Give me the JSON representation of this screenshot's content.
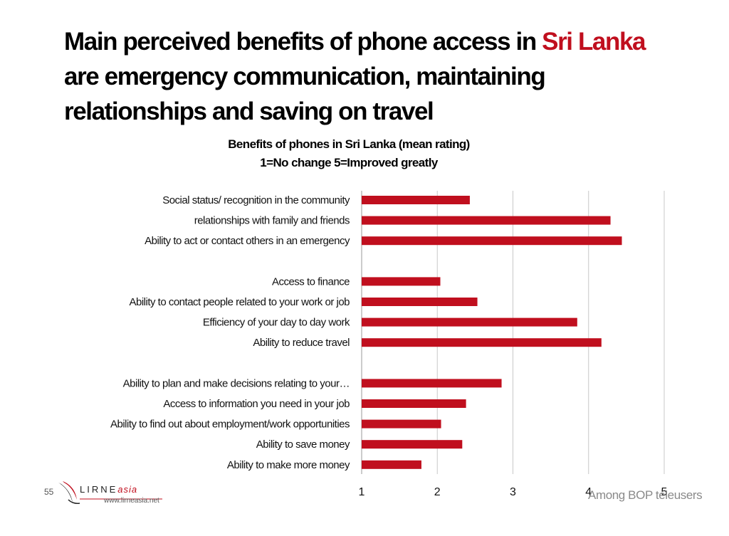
{
  "headline": {
    "part1": "Main perceived benefits of phone access in ",
    "accent": "Sri Lanka",
    "line2": "are emergency communication, maintaining",
    "line3": "relationships and saving on travel"
  },
  "colors": {
    "accent": "#c00f1e",
    "bar": "#c00f1e",
    "grid": "#c8c8c8"
  },
  "page_number": "55",
  "logo": {
    "name_part1": "LIRNE",
    "name_part2": "asia",
    "url": "www.lirneasia.net"
  },
  "footnote": "Among BOP teleusers",
  "chart_data": {
    "type": "bar",
    "orientation": "horizontal",
    "title": "Benefits of phones in Sri Lanka (mean rating)",
    "subtitle": "1=No change 5=Improved greatly",
    "xlim": [
      1,
      5
    ],
    "xticks": [
      1,
      2,
      3,
      4,
      5
    ],
    "grid": true,
    "categories": [
      "Social status/ recognition in the community",
      "relationships with family and friends",
      "Ability to act or contact others in an emergency",
      "Access to finance",
      "Ability to contact people related to your work or job",
      "Efficiency of your day to day work",
      "Ability to reduce travel",
      "Ability to plan and make decisions relating to your…",
      "Access to information you need in your job",
      "Ability to find out about employment/work opportunities",
      "Ability to save money",
      "Ability to make more money"
    ],
    "values": [
      2.43,
      4.29,
      4.44,
      2.04,
      2.53,
      3.85,
      4.17,
      2.85,
      2.38,
      2.05,
      2.33,
      1.79
    ],
    "groups": [
      3,
      4,
      5
    ]
  }
}
